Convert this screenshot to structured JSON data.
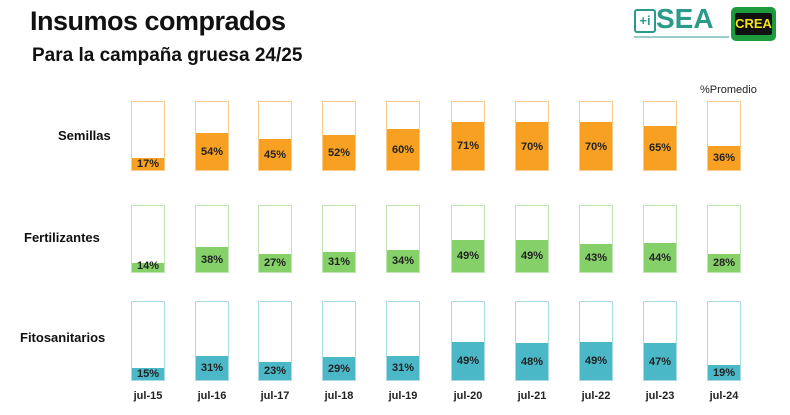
{
  "title": "Insumos comprados",
  "subtitle": "Para la campaña gruesa 24/25",
  "logos": {
    "sea": "SEA",
    "sea_icon": "+i",
    "crea": "CREA"
  },
  "legend": "%Promedio",
  "chart_data": {
    "type": "bar",
    "categories": [
      "jul-15",
      "jul-16",
      "jul-17",
      "jul-18",
      "jul-19",
      "jul-20",
      "jul-21",
      "jul-22",
      "jul-23",
      "jul-24"
    ],
    "ylim": [
      0,
      100
    ],
    "series": [
      {
        "name": "Semillas",
        "color": "#f7a021",
        "border": "#f9cc8c",
        "values": [
          17,
          54,
          45,
          52,
          60,
          71,
          70,
          70,
          65,
          36
        ]
      },
      {
        "name": "Fertilizantes",
        "color": "#86d06a",
        "border": "#bfe6b0",
        "values": [
          14,
          38,
          27,
          31,
          34,
          49,
          49,
          43,
          44,
          28
        ]
      },
      {
        "name": "Fitosanitarios",
        "color": "#4bb8c8",
        "border": "#a8dbe3",
        "values": [
          15,
          31,
          23,
          29,
          31,
          49,
          48,
          49,
          47,
          19
        ]
      }
    ]
  }
}
